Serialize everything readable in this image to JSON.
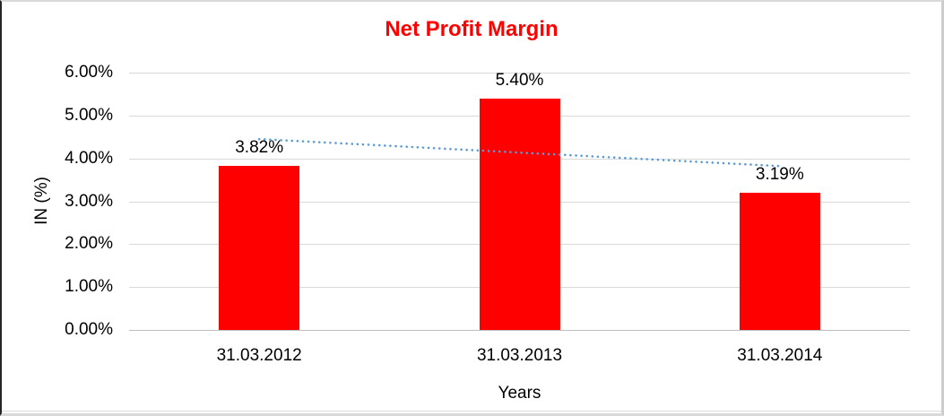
{
  "chart_data": {
    "type": "bar",
    "title": "Net Profit Margin",
    "xlabel": "Years",
    "ylabel": "IN (%)",
    "categories": [
      "31.03.2012",
      "31.03.2013",
      "31.03.2014"
    ],
    "series": [
      {
        "name": "Net Profit Margin",
        "values": [
          3.82,
          5.4,
          3.19
        ],
        "data_labels": [
          "3.82%",
          "5.40%",
          "3.19%"
        ],
        "color": "#FF0000"
      }
    ],
    "y_axis": {
      "range": [
        0,
        6
      ],
      "tick_values": [
        0,
        1,
        2,
        3,
        4,
        5,
        6
      ],
      "tick_labels": [
        "0.00%",
        "1.00%",
        "2.00%",
        "3.00%",
        "4.00%",
        "5.00%",
        "6.00%"
      ]
    },
    "grid": true,
    "legend": "none",
    "trendline": {
      "type": "linear",
      "style": "dotted",
      "color": "#5B9BD5",
      "start_value": 4.45,
      "end_value": 3.82
    },
    "colors": {
      "title": "#FF0000",
      "gridline": "#D9D9D9",
      "axis_line": "#BFBFBF",
      "text": "#000000"
    }
  }
}
